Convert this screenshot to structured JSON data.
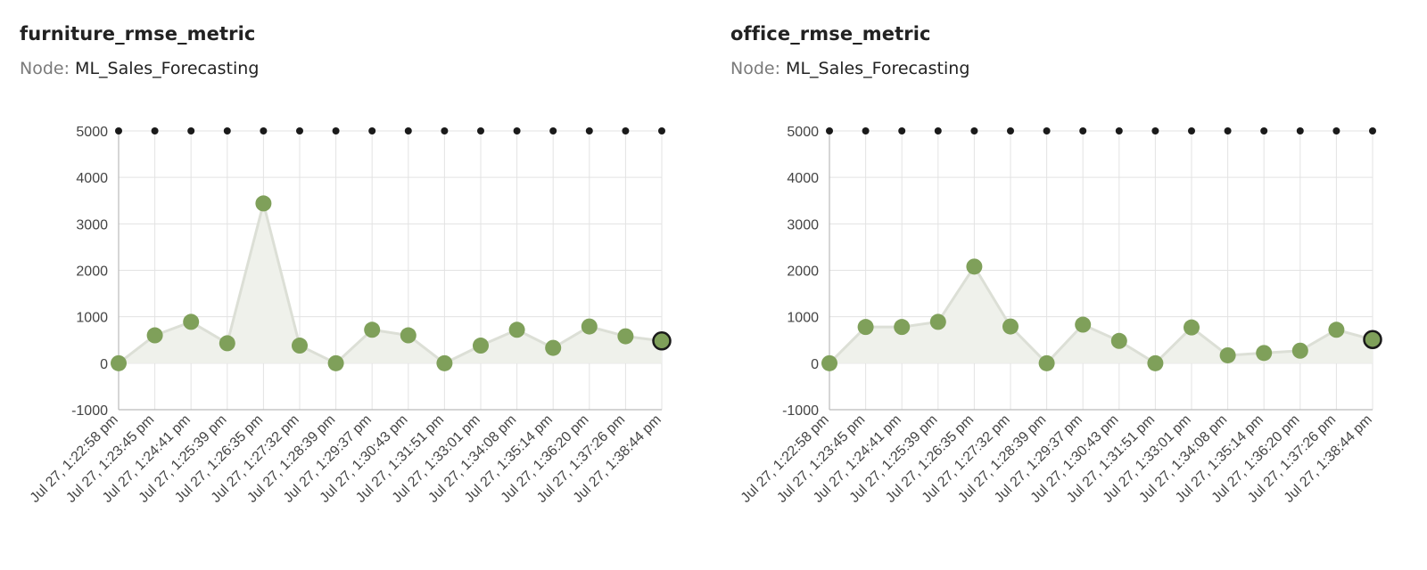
{
  "colors": {
    "point": "#7fa05a",
    "area": "#eff1eb",
    "line": "#dcdfd6",
    "grid": "#e3e3e3",
    "axis": "#bbbbbb",
    "top_marker": "#1a1a1a",
    "last_point_stroke": "#1a1a1a"
  },
  "chart_data": [
    {
      "type": "area",
      "title": "furniture_rmse_metric",
      "node_label": "Node:",
      "node_value": "ML_Sales_Forecasting",
      "ylim": [
        -1000,
        5000
      ],
      "y_ticks": [
        "-1000",
        "0",
        "1000",
        "2000",
        "3000",
        "4000",
        "5000"
      ],
      "grid": true,
      "x": [
        "Jul 27, 1:22:58 pm",
        "Jul 27, 1:23:45 pm",
        "Jul 27, 1:24:41 pm",
        "Jul 27, 1:25:39 pm",
        "Jul 27, 1:26:35 pm",
        "Jul 27, 1:27:32 pm",
        "Jul 27, 1:28:39 pm",
        "Jul 27, 1:29:37 pm",
        "Jul 27, 1:30:43 pm",
        "Jul 27, 1:31:51 pm",
        "Jul 27, 1:33:01 pm",
        "Jul 27, 1:34:08 pm",
        "Jul 27, 1:35:14 pm",
        "Jul 27, 1:36:20 pm",
        "Jul 27, 1:37:26 pm",
        "Jul 27, 1:38:44 pm"
      ],
      "series": [
        {
          "values": [
            0,
            600,
            890,
            430,
            3440,
            380,
            0,
            720,
            600,
            0,
            380,
            720,
            330,
            790,
            580,
            480
          ]
        }
      ]
    },
    {
      "type": "area",
      "title": "office_rmse_metric",
      "node_label": "Node:",
      "node_value": "ML_Sales_Forecasting",
      "ylim": [
        -1000,
        5000
      ],
      "y_ticks": [
        "-1000",
        "0",
        "1000",
        "2000",
        "3000",
        "4000",
        "5000"
      ],
      "grid": true,
      "x": [
        "Jul 27, 1:22:58 pm",
        "Jul 27, 1:23:45 pm",
        "Jul 27, 1:24:41 pm",
        "Jul 27, 1:25:39 pm",
        "Jul 27, 1:26:35 pm",
        "Jul 27, 1:27:32 pm",
        "Jul 27, 1:28:39 pm",
        "Jul 27, 1:29:37 pm",
        "Jul 27, 1:30:43 pm",
        "Jul 27, 1:31:51 pm",
        "Jul 27, 1:33:01 pm",
        "Jul 27, 1:34:08 pm",
        "Jul 27, 1:35:14 pm",
        "Jul 27, 1:36:20 pm",
        "Jul 27, 1:37:26 pm",
        "Jul 27, 1:38:44 pm"
      ],
      "series": [
        {
          "values": [
            0,
            780,
            780,
            890,
            2080,
            790,
            0,
            830,
            480,
            0,
            770,
            170,
            220,
            270,
            720,
            510
          ]
        }
      ]
    }
  ]
}
